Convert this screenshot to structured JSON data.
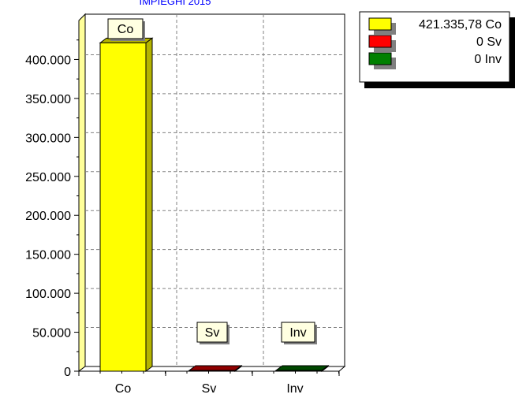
{
  "chart_data": {
    "type": "bar",
    "title": "IMPIEGHI 2015",
    "title_color": "#0000ff",
    "categories": [
      "Co",
      "Sv",
      "Inv"
    ],
    "values": [
      421335.78,
      0,
      0
    ],
    "colors": [
      "#ffff00",
      "#ff0000",
      "#008000"
    ],
    "side_colors": [
      "#b4b400",
      "#900000",
      "#004800"
    ],
    "ylim": [
      0,
      450000
    ],
    "yticks": [
      0,
      50000,
      100000,
      150000,
      200000,
      250000,
      300000,
      350000,
      400000
    ],
    "ytick_labels": [
      "0",
      "50.000",
      "100.000",
      "150.000",
      "200.000",
      "250.000",
      "300.000",
      "350.000",
      "400.000"
    ],
    "xlabel": "",
    "ylabel": "",
    "grid": true,
    "legend_position": "top-right",
    "legend": [
      {
        "label": "421.335,78 Co",
        "color": "#ffff00"
      },
      {
        "label": "0 Sv",
        "color": "#ff0000"
      },
      {
        "label": "0 Inv",
        "color": "#008000"
      }
    ],
    "data_labels": [
      "Co",
      "Sv",
      "Inv"
    ]
  }
}
